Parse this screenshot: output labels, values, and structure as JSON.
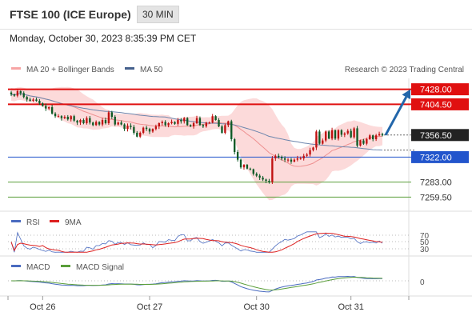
{
  "header": {
    "instrument": "FTSE 100 (ICE Europe)",
    "timeframe": "30 MIN"
  },
  "datetime": "Monday, October 30, 2023 8:35:39 PM CET",
  "legend": {
    "ma20": "MA 20 + Bollinger Bands",
    "ma50": "MA 50",
    "credit": "Research © 2023 Trading Central"
  },
  "rsi_legend": {
    "rsi": "RSI",
    "ma9": "9MA"
  },
  "macd_legend": {
    "macd": "MACD",
    "signal": "MACD Signal"
  },
  "colors": {
    "red": "#e01010",
    "blue": "#2255cc",
    "green": "#5a9e3a",
    "bollinger": "#fcd4d4",
    "candle_up": "#c01010",
    "candle_down": "#0d5a26",
    "ma50": "#44608c",
    "projection": "#2266aa"
  },
  "chart_data": {
    "type": "candlestick",
    "x_ticks": [
      "Oct 26",
      "Oct 27",
      "Oct 30",
      "Oct 31"
    ],
    "y_range": [
      7240,
      7445
    ],
    "current_price": "7356.50",
    "levels": [
      {
        "value": 7428.0,
        "label": "7428.00",
        "style": "resistance",
        "color": "#e01010"
      },
      {
        "value": 7404.5,
        "label": "7404.50",
        "style": "resistance",
        "color": "#e01010"
      },
      {
        "value": 7322.0,
        "label": "7322.00",
        "style": "pivot",
        "color": "#2255cc"
      },
      {
        "value": 7283.0,
        "label": "7283.00",
        "style": "support",
        "color": "#5a9e3a"
      },
      {
        "value": 7259.5,
        "label": "7259.50",
        "style": "support",
        "color": "#5a9e3a"
      }
    ],
    "projection": {
      "from": 7356.5,
      "to": 7428.0
    },
    "closes": [
      7420,
      7418,
      7425,
      7422,
      7416,
      7412,
      7410,
      7412,
      7410,
      7406,
      7402,
      7398,
      7400,
      7390,
      7386,
      7386,
      7383,
      7385,
      7381,
      7386,
      7379,
      7376,
      7380,
      7375,
      7383,
      7376,
      7372,
      7377,
      7373,
      7380,
      7375,
      7392,
      7385,
      7373,
      7376,
      7373,
      7366,
      7371,
      7369,
      7360,
      7354,
      7360,
      7368,
      7366,
      7362,
      7366,
      7370,
      7375,
      7377,
      7372,
      7375,
      7377,
      7374,
      7380,
      7378,
      7383,
      7372,
      7370,
      7375,
      7383,
      7372,
      7370,
      7376,
      7376,
      7386,
      7380,
      7370,
      7360,
      7372,
      7378,
      7350,
      7330,
      7318,
      7306,
      7310,
      7304,
      7303,
      7296,
      7293,
      7290,
      7287,
      7285,
      7283,
      7320,
      7324,
      7322,
      7320,
      7318,
      7318,
      7315,
      7318,
      7320,
      7320,
      7324,
      7326,
      7333,
      7337,
      7362,
      7343,
      7348,
      7362,
      7351,
      7364,
      7351,
      7364,
      7357,
      7359,
      7363,
      7353,
      7367,
      7340,
      7348,
      7343,
      7350,
      7356,
      7350,
      7356,
      7358,
      7356
    ],
    "rsi": {
      "levels": [
        70,
        50,
        30
      ]
    },
    "macd": {
      "zero": 0
    }
  }
}
